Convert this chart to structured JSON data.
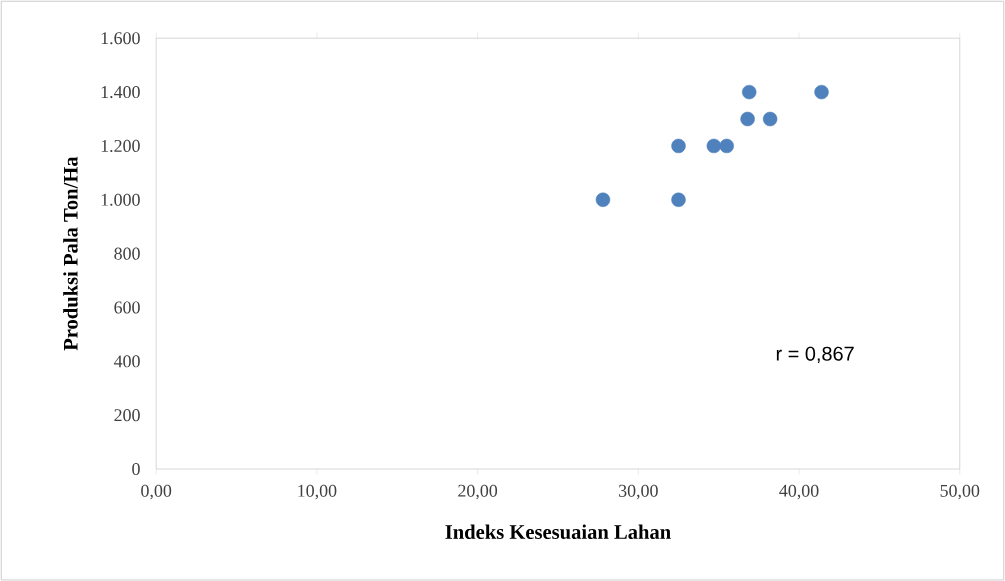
{
  "chart_data": {
    "type": "scatter",
    "xlabel": "Indeks Kesesuaian Lahan",
    "ylabel": "Produksi Pala Ton/Ha",
    "x": [
      27.8,
      32.5,
      32.5,
      34.7,
      35.5,
      36.8,
      36.9,
      38.2,
      41.4
    ],
    "values": [
      1000,
      1200,
      1000,
      1200,
      1200,
      1300,
      1400,
      1300,
      1400
    ],
    "color": "#4f81bd",
    "marker": "circle",
    "grid": false,
    "xlim": [
      0,
      50
    ],
    "ylim": [
      0,
      1600
    ],
    "xticks": [
      {
        "value": 0,
        "label": "0,00"
      },
      {
        "value": 10,
        "label": "10,00"
      },
      {
        "value": 20,
        "label": "20,00"
      },
      {
        "value": 30,
        "label": "30,00"
      },
      {
        "value": 40,
        "label": "40,00"
      },
      {
        "value": 50,
        "label": "50,00"
      }
    ],
    "yticks": [
      0,
      200,
      400,
      600,
      800,
      {
        "value": 1000,
        "label": "1.000"
      },
      {
        "value": 1200,
        "label": "1.200"
      },
      {
        "value": 1400,
        "label": "1.400"
      },
      {
        "value": 1600,
        "label": "1.600"
      }
    ],
    "annotations": [
      "r = 0,867"
    ]
  }
}
